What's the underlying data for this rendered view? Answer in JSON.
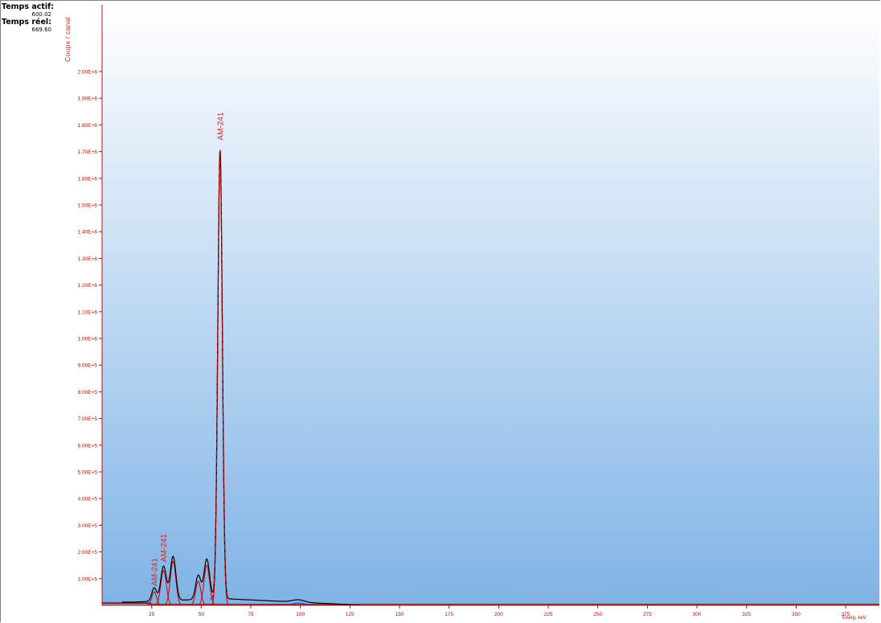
{
  "info": {
    "live_time_label": "Temps actif:",
    "live_time_value": "600.02",
    "real_time_label": "Temps réel:",
    "real_time_value": "669.60"
  },
  "colors": {
    "axis_text": "#b51010",
    "fit_curve": "#cc0000",
    "spectrum": "#000000",
    "background_top": "#ffffff",
    "background_bottom": "#7fb3e6",
    "minor_component": "#2244cc",
    "baseline": "#7a2020"
  },
  "chart_data": {
    "type": "line",
    "ylabel": "Coups / canal",
    "xlabel": "Energ. keV",
    "xlim": [
      0,
      392
    ],
    "ylim": [
      0,
      2250000
    ],
    "x_ticks": [
      "25",
      "50",
      "75",
      "100",
      "125",
      "150",
      "175",
      "200",
      "225",
      "250",
      "275",
      "300",
      "325",
      "350",
      "375"
    ],
    "y_ticks": [
      "1.00E+5",
      "2.00E+5",
      "3.00E+5",
      "4.00E+5",
      "5.00E+5",
      "6.00E+5",
      "7.00E+5",
      "8.00E+5",
      "9.00E+5",
      "1.00E+6",
      "1.10E+6",
      "1.20E+6",
      "1.30E+6",
      "1.40E+6",
      "1.50E+6",
      "1.60E+6",
      "1.70E+6",
      "1.80E+6",
      "1.90E+6",
      "2.00E+6"
    ],
    "peaks": [
      {
        "center": 26.3,
        "height": 50000,
        "sigma": 1.2
      },
      {
        "center": 31.0,
        "height": 130000,
        "sigma": 1.4
      },
      {
        "center": 35.8,
        "height": 165000,
        "sigma": 1.4
      },
      {
        "center": 48.5,
        "height": 90000,
        "sigma": 1.3
      },
      {
        "center": 52.8,
        "height": 150000,
        "sigma": 1.4
      },
      {
        "center": 59.5,
        "height": 1680000,
        "sigma": 1.15
      },
      {
        "center": 99.0,
        "height": 9000,
        "sigma": 3.0
      }
    ],
    "annotations": [
      {
        "text": "AM-241",
        "x": 26.3,
        "y": 60000
      },
      {
        "text": "AM-241",
        "x": 31.0,
        "y": 150000
      },
      {
        "text": "AM-241",
        "x": 59.5,
        "y": 1730000
      }
    ]
  }
}
